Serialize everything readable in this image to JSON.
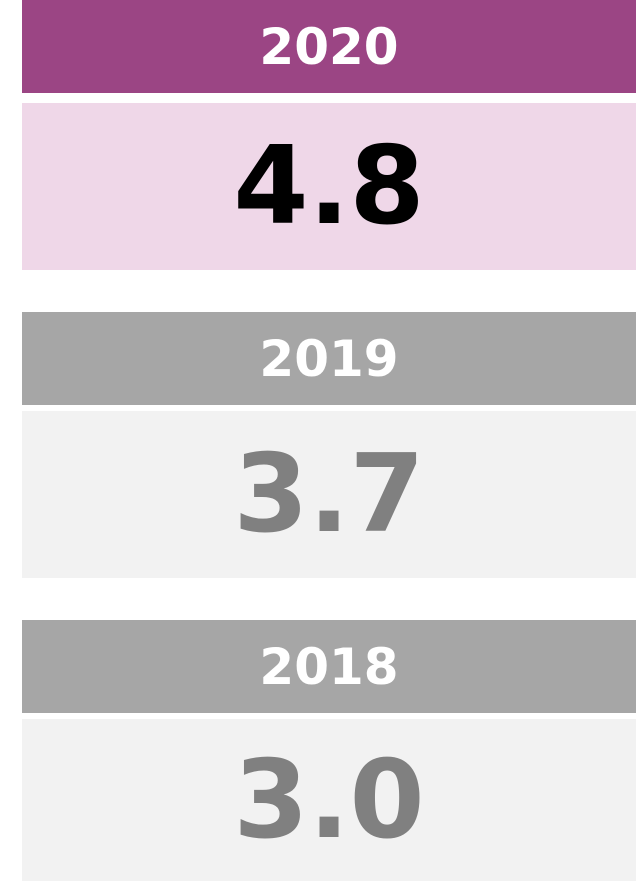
{
  "cards": [
    {
      "year": "2020",
      "value": "4.8"
    },
    {
      "year": "2019",
      "value": "3.7"
    },
    {
      "year": "2018",
      "value": "3.0"
    }
  ]
}
